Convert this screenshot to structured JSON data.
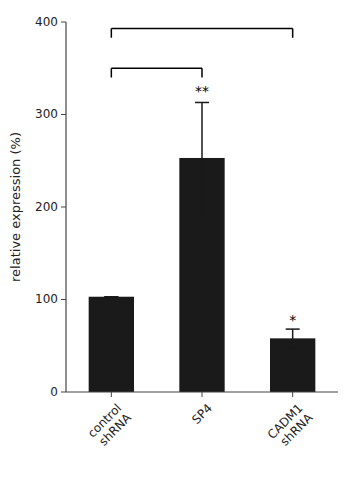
{
  "chart_data": {
    "type": "bar",
    "categories": [
      "control\nshRNA",
      "SP4",
      "CADM1\nshRNA"
    ],
    "values": [
      103,
      253,
      58
    ],
    "errors": [
      0,
      60,
      10
    ],
    "color": "#1a1a1a",
    "ylabel": "relative expression  (%)",
    "ylim": [
      0,
      400
    ],
    "yticks": [
      0,
      100,
      200,
      300,
      400
    ],
    "grid": false,
    "brackets": [
      {
        "from": 0,
        "to": 1,
        "y": 350,
        "tick_down": 10
      },
      {
        "from": 0,
        "to": 2,
        "y": 393,
        "tick_down": 10
      }
    ],
    "annotations": [
      {
        "category": 1,
        "y": 318,
        "text": "**"
      },
      {
        "category": 2,
        "y": 70,
        "text": "*"
      }
    ]
  }
}
